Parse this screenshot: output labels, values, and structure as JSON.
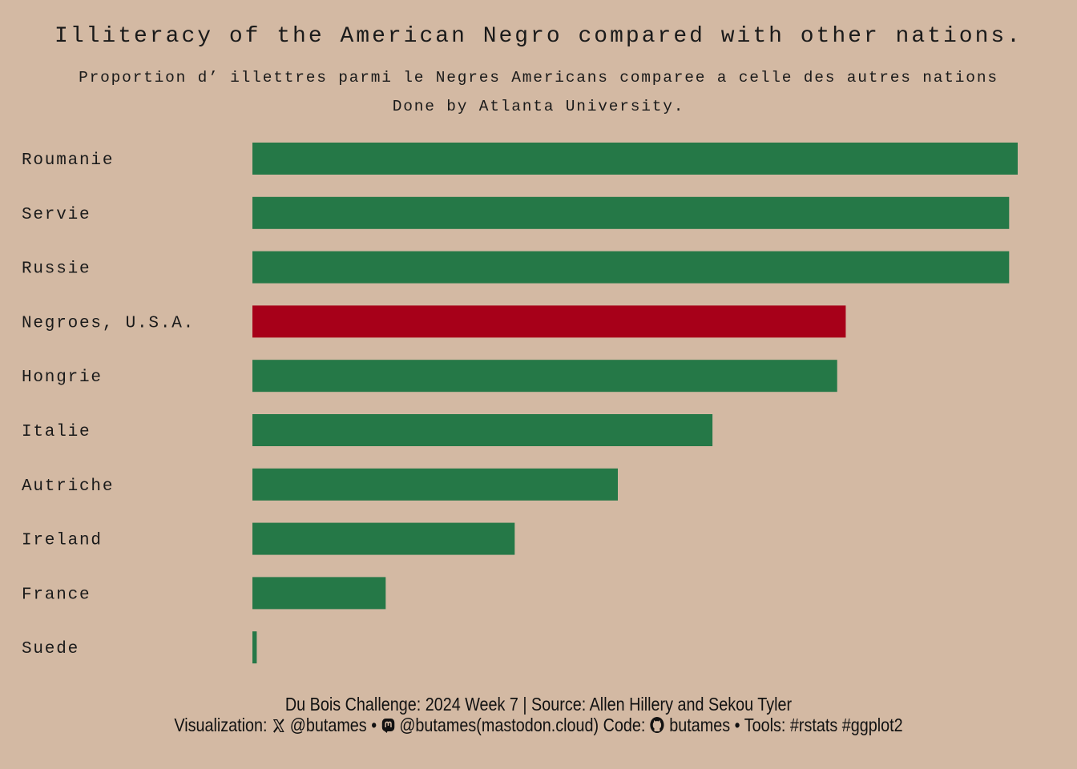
{
  "title": "Illiteracy of the American Negro compared with other nations.",
  "subtitle": "Proportion d’ illettres parmi le Negres Americans comparee a celle des autres nations",
  "subtitle2": "Done by Atlanta University.",
  "caption": {
    "line1": "Du Bois Challenge: 2024 Week 7 | Source: Allen Hillery and Sekou Tyler",
    "viz_prefix": "Visualization:",
    "twitter": "@butames",
    "sep1": "•",
    "mastodon": "@butames(mastodon.cloud)",
    "code_prefix": "Code:",
    "github": "butames",
    "sep2": "•",
    "tools": "Tools: #rstats #ggplot2",
    "icons": [
      "x-twitter-icon",
      "mastodon-icon",
      "github-icon"
    ]
  },
  "colors": {
    "background": "#d3b9a3",
    "bar": "#257847",
    "highlight": "#a70019"
  },
  "chart_data": {
    "type": "bar",
    "orientation": "horizontal",
    "categories": [
      "Roumanie",
      "Servie",
      "Russie",
      "Negroes, U.S.A.",
      "Hongrie",
      "Italie",
      "Autriche",
      "Ireland",
      "France",
      "Suede"
    ],
    "values": [
      89,
      88,
      88,
      69,
      68,
      53.5,
      42.5,
      30.5,
      15.5,
      0.5
    ],
    "highlight": "Negroes, U.S.A.",
    "xlim": [
      0,
      89
    ],
    "grid": false,
    "legend": "none"
  }
}
